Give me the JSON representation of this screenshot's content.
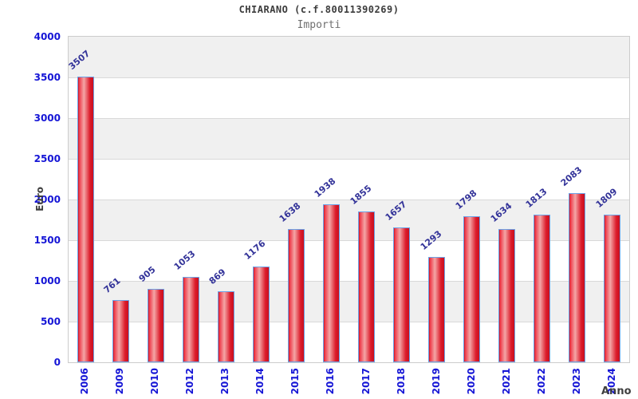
{
  "title": "CHIARANO (c.f.80011390269)",
  "subtitle": "Importi",
  "chart_data": {
    "type": "bar",
    "title": "CHIARANO (c.f.80011390269)",
    "subtitle": "Importi",
    "xlabel": "Anno",
    "ylabel": "Euro",
    "categories": [
      "2006",
      "2009",
      "2010",
      "2012",
      "2013",
      "2014",
      "2015",
      "2016",
      "2017",
      "2018",
      "2019",
      "2020",
      "2021",
      "2022",
      "2023",
      "2024"
    ],
    "values": [
      3507,
      761,
      905,
      1053,
      869,
      1176,
      1638,
      1938,
      1855,
      1657,
      1293,
      1798,
      1634,
      1813,
      2083,
      1809
    ],
    "ylim": [
      0,
      4000
    ],
    "ytick_step": 500,
    "yticks": [
      0,
      500,
      1000,
      1500,
      2000,
      2500,
      3000,
      3500,
      4000
    ],
    "bar_value_labels_shown": true,
    "legend": "none",
    "grid": "alternating-horizontal-bands",
    "colors": {
      "tick_label": "#1515d6",
      "value_label": "#333399",
      "axis_title": "#3f3f3f",
      "title": "#3c3c3c",
      "subtitle": "#707070",
      "band_gray": "#f0f0f0",
      "band_white": "#ffffff",
      "gridline": "#d9d9d9",
      "plot_border": "#cccccc",
      "bar_border": "#6ba3e8",
      "bar_red": "#d61628",
      "bar_highlight": "#f4a6a6",
      "bar_gradient": [
        "#c8101f 0%",
        "#ee3747 6%",
        "#f4a6a6 38%",
        "#dc1b2b 78%",
        "#c8101f 100%"
      ]
    }
  }
}
